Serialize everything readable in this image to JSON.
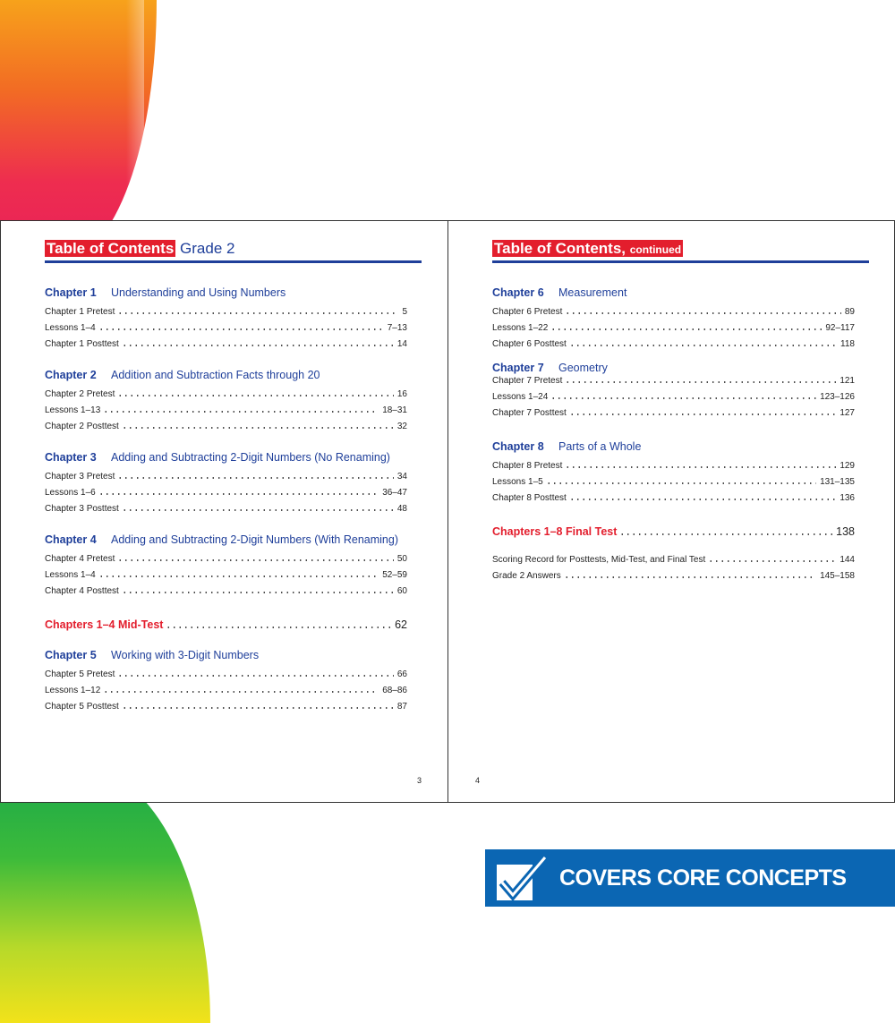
{
  "left_page": {
    "header": {
      "highlight": "Table of Contents",
      "rest": "Grade 2"
    },
    "page_number": "3",
    "chapters": [
      {
        "label": "Chapter 1",
        "title": "Understanding and Using Numbers",
        "entries": [
          {
            "label": "Chapter 1 Pretest",
            "page": "5"
          },
          {
            "label": "Lessons 1–4",
            "page": "7–13"
          },
          {
            "label": "Chapter 1 Posttest",
            "page": "14"
          }
        ]
      },
      {
        "label": "Chapter 2",
        "title": "Addition and Subtraction Facts through 20",
        "entries": [
          {
            "label": "Chapter 2 Pretest",
            "page": "16"
          },
          {
            "label": "Lessons 1–13",
            "page": "18–31"
          },
          {
            "label": "Chapter 2 Posttest",
            "page": "32"
          }
        ]
      },
      {
        "label": "Chapter 3",
        "title": "Adding and Subtracting 2-Digit Numbers (No Renaming)",
        "entries": [
          {
            "label": "Chapter 3 Pretest",
            "page": "34"
          },
          {
            "label": "Lessons 1–6",
            "page": "36–47"
          },
          {
            "label": "Chapter 3 Posttest",
            "page": "48"
          }
        ]
      },
      {
        "label": "Chapter 4",
        "title": "Adding and Subtracting 2-Digit Numbers (With Renaming)",
        "entries": [
          {
            "label": "Chapter 4 Pretest",
            "page": "50"
          },
          {
            "label": "Lessons 1–4",
            "page": "52–59"
          },
          {
            "label": "Chapter 4 Posttest",
            "page": "60"
          }
        ]
      },
      {
        "label": "Chapter 5",
        "title": "Working with 3-Digit Numbers",
        "entries": [
          {
            "label": "Chapter 5 Pretest",
            "page": "66"
          },
          {
            "label": "Lessons 1–12",
            "page": "68–86"
          },
          {
            "label": "Chapter 5 Posttest",
            "page": "87"
          }
        ]
      }
    ],
    "mid_test": {
      "label": "Chapters 1–4 Mid-Test",
      "page": "62"
    }
  },
  "right_page": {
    "header": {
      "highlight": "Table of Contents,",
      "small": "continued"
    },
    "page_number": "4",
    "chapters": [
      {
        "label": "Chapter 6",
        "title": "Measurement",
        "entries": [
          {
            "label": "Chapter 6 Pretest",
            "page": "89"
          },
          {
            "label": "Lessons 1–22",
            "page": "92–117"
          },
          {
            "label": "Chapter 6 Posttest",
            "page": "118"
          }
        ]
      },
      {
        "label": "Chapter 7",
        "title": "Geometry",
        "entries": [
          {
            "label": "Chapter 7 Pretest",
            "page": "121"
          },
          {
            "label": "Lessons 1–24",
            "page": "123–126"
          },
          {
            "label": "Chapter 7 Posttest",
            "page": "127"
          }
        ]
      },
      {
        "label": "Chapter 8",
        "title": "Parts of a Whole",
        "entries": [
          {
            "label": "Chapter 8 Pretest",
            "page": "129"
          },
          {
            "label": "Lessons 1–5",
            "page": "131–135"
          },
          {
            "label": "Chapter 8 Posttest",
            "page": "136"
          }
        ]
      }
    ],
    "final_test": {
      "label": "Chapters 1–8 Final Test",
      "page": "138"
    },
    "extras": [
      {
        "label": "Scoring Record for Posttests, Mid-Test, and Final Test",
        "page": "144"
      },
      {
        "label": "Grade 2 Answers",
        "page": "145–158"
      }
    ]
  },
  "badge": {
    "text": "COVERS CORE CONCEPTS",
    "icon": "checkmark-box-icon",
    "color": "#0b66b3"
  },
  "colors": {
    "title_red": "#e31e2d",
    "heading_blue": "#1f3f9a"
  }
}
